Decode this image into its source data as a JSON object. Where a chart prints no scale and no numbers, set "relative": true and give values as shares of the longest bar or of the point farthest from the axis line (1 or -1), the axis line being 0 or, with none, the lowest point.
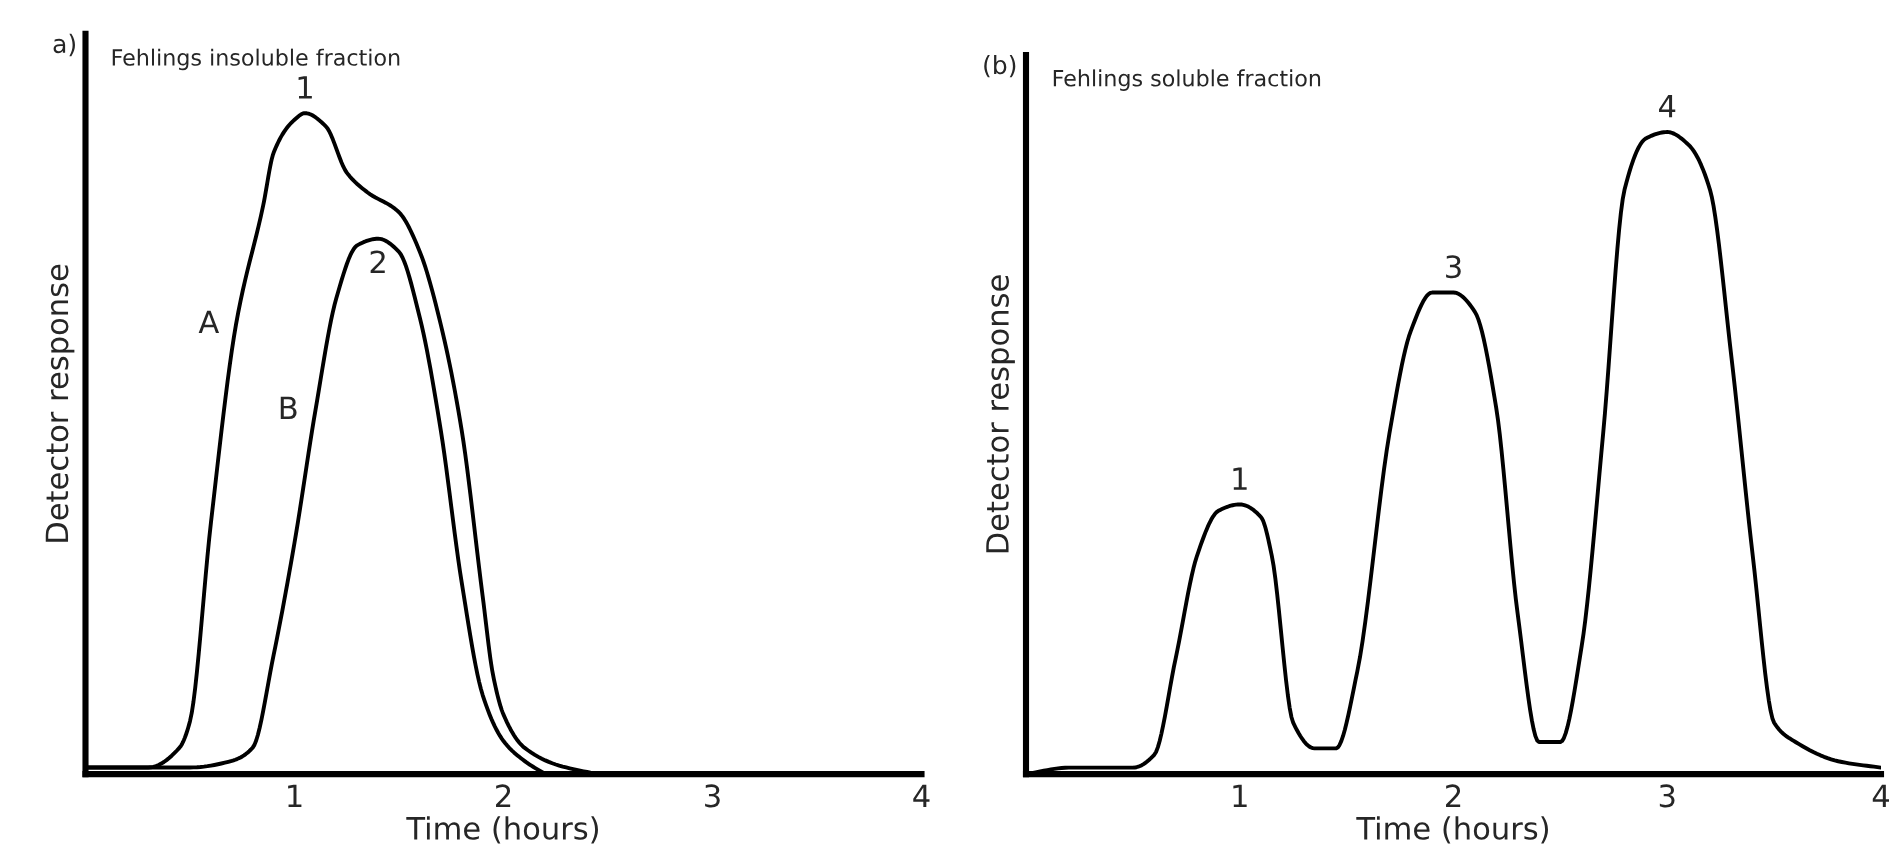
{
  "chart_data": [
    {
      "type": "line",
      "title": "Fehlings insoluble fraction",
      "xlabel": "Time (hours)",
      "ylabel": "Detector response",
      "relative": true,
      "xlim": [
        0,
        4
      ],
      "xticks": [
        1,
        2,
        3,
        4
      ],
      "tick_labels": "x",
      "grid": false,
      "legend": false,
      "series": [
        {
          "color": "#000000",
          "x": [
            0,
            0.3,
            0.45,
            0.5,
            0.6,
            0.72,
            0.85,
            0.9,
            1.0,
            1.05,
            1.15,
            1.25,
            1.35,
            1.5,
            1.6,
            1.7,
            1.8,
            1.9,
            1.95,
            2.0,
            2.1,
            2.3,
            2.5,
            4
          ],
          "values": [
            0.01,
            0.01,
            0.04,
            0.08,
            0.38,
            0.68,
            0.86,
            0.94,
            0.99,
            1.0,
            0.98,
            0.91,
            0.88,
            0.85,
            0.79,
            0.68,
            0.52,
            0.27,
            0.15,
            0.09,
            0.04,
            0.01,
            0,
            0
          ]
        },
        {
          "color": "#000000",
          "x": [
            0,
            0.5,
            0.7,
            0.8,
            0.9,
            1.0,
            1.1,
            1.2,
            1.3,
            1.4,
            1.5,
            1.6,
            1.7,
            1.8,
            1.9,
            2.0,
            2.1,
            2.2
          ],
          "values": [
            0.01,
            0.01,
            0.02,
            0.04,
            0.18,
            0.35,
            0.55,
            0.72,
            0.8,
            0.81,
            0.79,
            0.69,
            0.52,
            0.29,
            0.12,
            0.05,
            0.02,
            0
          ]
        }
      ],
      "annotations": [
        "a)",
        {
          "text": "1",
          "x": 1.05,
          "y": 1.0
        },
        {
          "text": "2",
          "x": 1.4,
          "y": 0.81
        },
        {
          "text": "A",
          "x": 0.72,
          "y": 0.68
        },
        {
          "text": "B",
          "x": 1.1,
          "y": 0.55
        }
      ]
    },
    {
      "type": "line",
      "title": "Fehlings soluble fraction",
      "xlabel": "Time (hours)",
      "ylabel": "Detector response",
      "relative": true,
      "xlim": [
        0,
        4
      ],
      "xticks": [
        1,
        2,
        3,
        4
      ],
      "tick_labels": "x",
      "grid": false,
      "legend": false,
      "series": [
        {
          "color": "#000000",
          "x": [
            0,
            0.2,
            0.5,
            0.6,
            0.7,
            0.8,
            0.9,
            1.0,
            1.1,
            1.15,
            1.25,
            1.35,
            1.45,
            1.55,
            1.7,
            1.8,
            1.9,
            2.0,
            2.1,
            2.2,
            2.3,
            2.4,
            2.5,
            2.6,
            2.7,
            2.8,
            2.9,
            3.0,
            3.1,
            3.2,
            3.3,
            3.4,
            3.5,
            3.6,
            3.8,
            4.0
          ],
          "values": [
            0,
            0.01,
            0.01,
            0.03,
            0.18,
            0.34,
            0.41,
            0.42,
            0.4,
            0.34,
            0.08,
            0.04,
            0.04,
            0.16,
            0.53,
            0.69,
            0.75,
            0.75,
            0.72,
            0.57,
            0.25,
            0.05,
            0.05,
            0.2,
            0.53,
            0.91,
            0.99,
            1.0,
            0.98,
            0.91,
            0.65,
            0.34,
            0.08,
            0.05,
            0.02,
            0.01
          ]
        }
      ],
      "annotations": [
        "(b)",
        {
          "text": "1",
          "x": 1.0,
          "y": 0.42
        },
        {
          "text": "3",
          "x": 2.0,
          "y": 0.75
        },
        {
          "text": "4",
          "x": 3.0,
          "y": 1.0
        }
      ]
    }
  ]
}
